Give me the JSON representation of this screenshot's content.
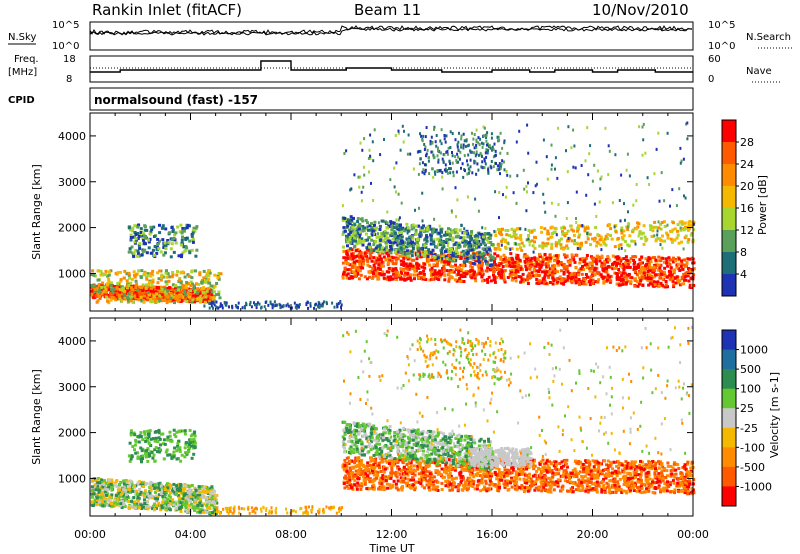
{
  "header": {
    "title": "Rankin Inlet (fitACF)",
    "beam": "Beam 11",
    "date": "10/Nov/2010"
  },
  "strips": {
    "nsky_label": "N.Sky",
    "nsky_ticks": [
      "10^5",
      "10^0"
    ],
    "nsearch_label": "N.Search",
    "nsearch_ticks": [
      "10^5",
      "10^0"
    ],
    "freq_label_1": "Freq.",
    "freq_label_2": "[MHz]",
    "freq_ticks": [
      "18",
      "8"
    ],
    "nave_label": "Nave",
    "nave_ticks": [
      "60",
      "0"
    ],
    "cpid_label": "CPID",
    "cpid_text": "normalsound (fast) -157"
  },
  "colorbars": {
    "power": {
      "label": "Power [dB]",
      "ticks": [
        "28",
        "24",
        "20",
        "16",
        "12",
        "8",
        "4"
      ],
      "colors": [
        "#ff0000",
        "#ff5a00",
        "#ff8c00",
        "#f5b800",
        "#a8d630",
        "#5aa05a",
        "#1e6e78",
        "#1e32b4",
        "#0000ff"
      ]
    },
    "velocity": {
      "label": "Velocity [m s-1]",
      "ticks": [
        "1000",
        "500",
        "100",
        "25",
        "-25",
        "-100",
        "-500",
        "-1000"
      ],
      "colors": [
        "#1e32b4",
        "#1e6ea0",
        "#2d8c50",
        "#64c832",
        "#c8c8c8",
        "#f5b800",
        "#ff8c00",
        "#ff5a00",
        "#ff0000"
      ]
    }
  },
  "chart_data": [
    {
      "type": "heatmap",
      "title": "",
      "xlabel": "",
      "ylabel": "Slant Range [km]",
      "xlim": [
        "00:00",
        "24:00"
      ],
      "ylim": [
        180,
        4500
      ],
      "xticks": [
        "00:00",
        "04:00",
        "08:00",
        "12:00",
        "16:00",
        "20:00",
        "00:00"
      ],
      "yticks": [
        1000,
        2000,
        3000,
        4000
      ],
      "colorbar": "Power [dB]",
      "regions": [
        {
          "t0": 0.0,
          "t1": 4.5,
          "r0": 300,
          "r1": 900,
          "value": "red/orange (20-28 dB)"
        },
        {
          "t0": 1.5,
          "t1": 4.0,
          "r0": 1400,
          "r1": 2000,
          "value": "green/blue (8-16 dB)"
        },
        {
          "t0": 10.0,
          "t1": 24.0,
          "r0": 700,
          "r1": 1800,
          "value": "red/orange (20-28 dB)"
        },
        {
          "t0": 10.0,
          "t1": 15.0,
          "r0": 1800,
          "r1": 2600,
          "value": "green/blue (8-16 dB)"
        },
        {
          "t0": 13.0,
          "t1": 16.0,
          "r0": 3200,
          "r1": 4000,
          "value": "blue (4-8 dB)"
        }
      ]
    },
    {
      "type": "heatmap",
      "title": "",
      "xlabel": "Time UT",
      "ylabel": "Slant Range [km]",
      "xlim": [
        "00:00",
        "24:00"
      ],
      "ylim": [
        180,
        4500
      ],
      "xticks": [
        "00:00",
        "04:00",
        "08:00",
        "12:00",
        "16:00",
        "20:00",
        "00:00"
      ],
      "yticks": [
        1000,
        2000,
        3000,
        4000
      ],
      "colorbar": "Velocity [m s-1]",
      "regions": [
        {
          "t0": 0.0,
          "t1": 5.0,
          "r0": 300,
          "r1": 1200,
          "value": "green/grey (-25 to 100)"
        },
        {
          "t0": 10.0,
          "t1": 24.0,
          "r0": 600,
          "r1": 1800,
          "value": "orange (-100 to -500)"
        },
        {
          "t0": 10.0,
          "t1": 16.0,
          "r0": 1500,
          "r1": 2300,
          "value": "green (25-100)"
        },
        {
          "t0": 15.0,
          "t1": 17.5,
          "r0": 1200,
          "r1": 1700,
          "value": "grey (-25 to 25)"
        }
      ]
    }
  ],
  "axes": {
    "xlabel": "Time UT",
    "xticks": [
      "00:00",
      "04:00",
      "08:00",
      "12:00",
      "16:00",
      "20:00",
      "00:00"
    ],
    "yticks": [
      "1000",
      "2000",
      "3000",
      "4000"
    ],
    "ylabel": "Slant Range [km]"
  }
}
